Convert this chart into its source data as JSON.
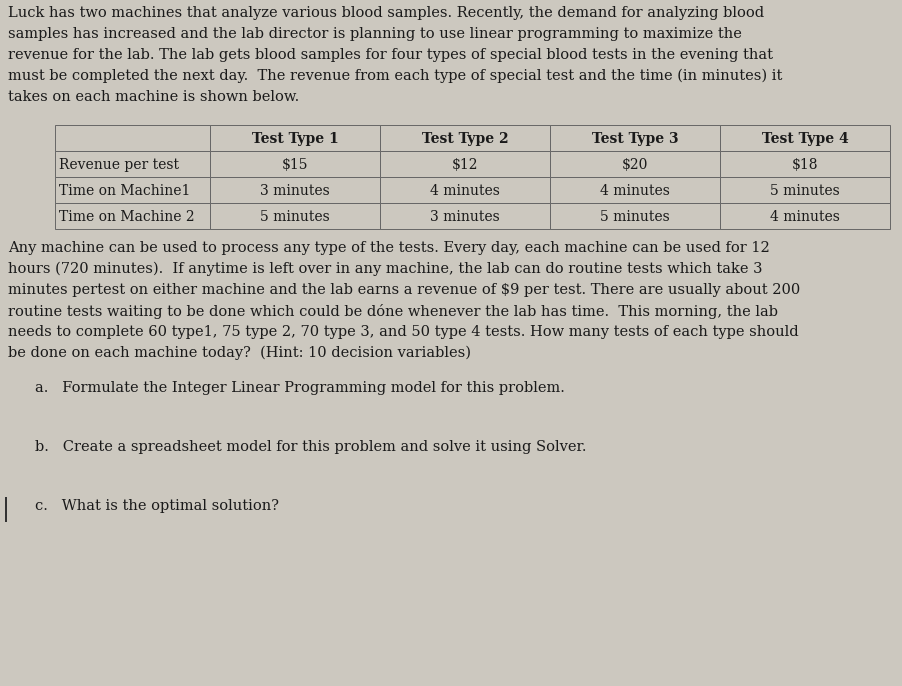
{
  "bg_color": "#ccc8bf",
  "text_color": "#1a1a1a",
  "intro_lines": [
    "Luck has two machines that analyze various blood samples. Recently, the demand for analyzing blood",
    "samples has increased and the lab director is planning to use linear programming to maximize the",
    "revenue for the lab. The lab gets blood samples for four types of special blood tests in the evening that",
    "must be completed the next day.  The revenue from each type of special test and the time (in minutes) it",
    "takes on each machine is shown below."
  ],
  "intro_bold_words": [
    "special",
    "must be completed the next day."
  ],
  "table_headers": [
    "",
    "Test Type 1",
    "Test Type 2",
    "Test Type 3",
    "Test Type 4"
  ],
  "table_rows": [
    [
      "Revenue per test",
      "$15",
      "$12",
      "$20",
      "$18"
    ],
    [
      "Time on Machine1",
      "3 minutes",
      "4 minutes",
      "4 minutes",
      "5 minutes"
    ],
    [
      "Time on Machine 2",
      "5 minutes",
      "3 minutes",
      "5 minutes",
      "4 minutes"
    ]
  ],
  "para2_lines": [
    "Any machine can be used to process any type of the tests. Every day, each machine can be used for 12",
    "hours (720 minutes).  If anytime is left over in any machine, the lab can do routine tests which take 3",
    "minutes pertest on either machine and the lab earns a revenue of $9 per test. There are usually about 200",
    "routine tests waiting to be done which could be dóne whenever the lab has time.  This morning, the lab",
    "needs to complete 60 type1, 75 type 2, 70 type 3, and 50 type 4 tests. How many tests of each type should",
    "be done on each machine today?  (Hint: 10 decision variables)"
  ],
  "question_a": "a.   Formulate the Integer Linear Programming model for this problem.",
  "question_b": "b.   Create a spreadsheet model for this problem and solve it using Solver.",
  "question_c": "c.   What is the optimal solution?",
  "font_size_body": 10.5,
  "font_size_table": 10.0
}
